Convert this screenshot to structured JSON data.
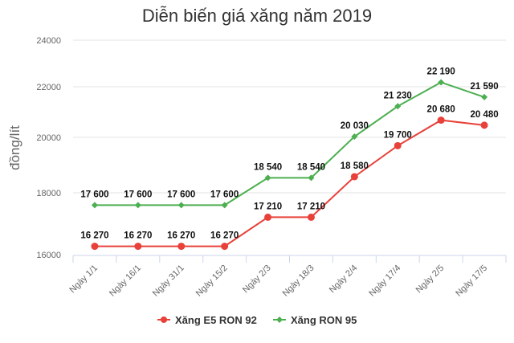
{
  "chart_data": {
    "type": "line",
    "title": "Diễn biến giá xăng năm 2019",
    "xlabel": "",
    "ylabel": "đồng/lít",
    "categories": [
      "Ngày 1/1",
      "Ngày 16/1",
      "Ngày 31/1",
      "Ngày 15/2",
      "Ngày 2/3",
      "Ngày 18/3",
      "Ngày 2/4",
      "Ngày 17/4",
      "Ngày 2/5",
      "Ngày 17/5"
    ],
    "series": [
      {
        "name": "Xăng E5 RON 92",
        "color": "#e8413a",
        "marker": "circle",
        "values": [
          16270,
          16270,
          16270,
          16270,
          17210,
          17210,
          18580,
          19700,
          20680,
          20480
        ],
        "labels": [
          "16 270",
          "16 270",
          "16 270",
          "16 270",
          "17 210",
          "17 210",
          "18 580",
          "19 700",
          "20 680",
          "20 480"
        ]
      },
      {
        "name": "Xăng RON 95",
        "color": "#4caf50",
        "marker": "diamond",
        "values": [
          17600,
          17600,
          17600,
          17600,
          18540,
          18540,
          20030,
          21230,
          22190,
          21590
        ],
        "labels": [
          "17 600",
          "17 600",
          "17 600",
          "17 600",
          "18 540",
          "18 540",
          "20 030",
          "21 230",
          "22 190",
          "21 590"
        ]
      }
    ],
    "yticks": [
      16000,
      18000,
      20000,
      22000,
      24000
    ],
    "ytick_labels": [
      "16000",
      "18000",
      "20000",
      "22000",
      "24000"
    ],
    "ylim": [
      16000,
      24000
    ],
    "grid": true,
    "legend_position": "bottom"
  }
}
